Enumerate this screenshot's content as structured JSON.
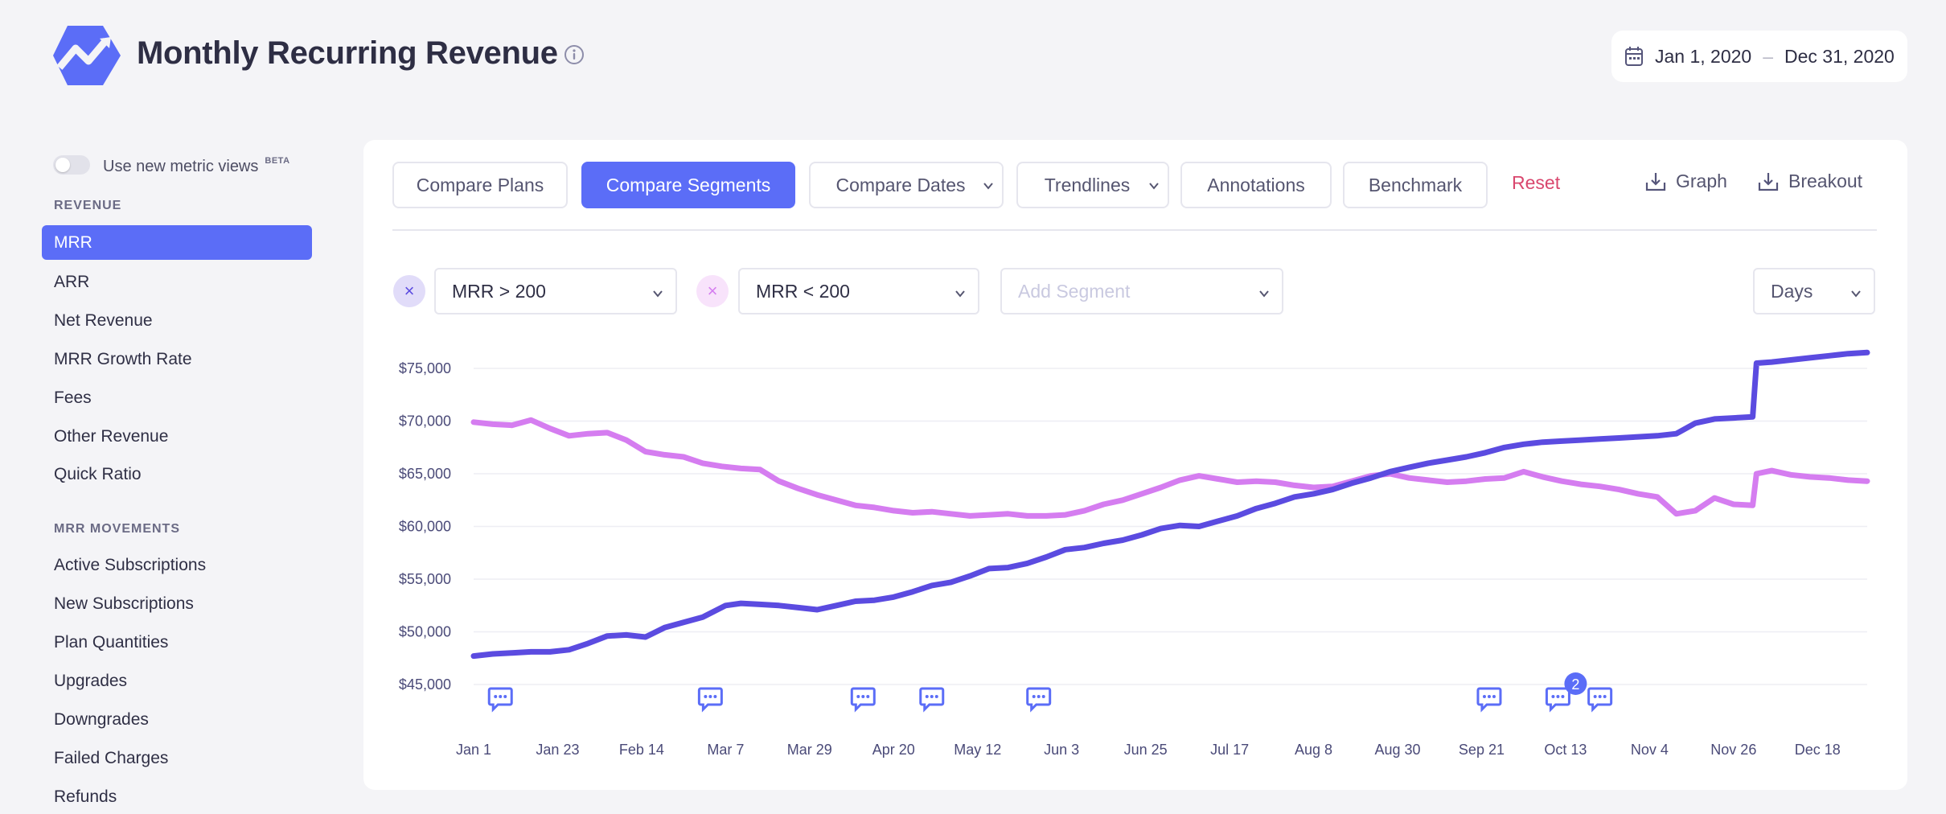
{
  "header": {
    "title": "Monthly Recurring Revenue",
    "date_start": "Jan 1, 2020",
    "date_sep": "–",
    "date_end": "Dec 31, 2020"
  },
  "sidebar": {
    "toggle_label": "Use new metric views",
    "toggle_badge": "BETA",
    "revenue_title": "REVENUE",
    "revenue_items": [
      {
        "label": "MRR",
        "active": true
      },
      {
        "label": "ARR"
      },
      {
        "label": "Net Revenue"
      },
      {
        "label": "MRR Growth Rate"
      },
      {
        "label": "Fees"
      },
      {
        "label": "Other Revenue"
      },
      {
        "label": "Quick Ratio"
      }
    ],
    "movements_title": "MRR MOVEMENTS",
    "movement_items": [
      {
        "label": "Active Subscriptions"
      },
      {
        "label": "New Subscriptions"
      },
      {
        "label": "Plan Quantities"
      },
      {
        "label": "Upgrades"
      },
      {
        "label": "Downgrades"
      },
      {
        "label": "Failed Charges"
      },
      {
        "label": "Refunds"
      }
    ]
  },
  "toolbar": {
    "compare_plans": "Compare Plans",
    "compare_segments": "Compare Segments",
    "compare_dates": "Compare Dates",
    "trendlines": "Trendlines",
    "annotations": "Annotations",
    "benchmark": "Benchmark",
    "reset": "Reset",
    "graph": "Graph",
    "breakout": "Breakout"
  },
  "segments": {
    "segment1": "MRR > 200",
    "segment2": "MRR < 200",
    "add_placeholder": "Add Segment",
    "interval": "Days"
  },
  "colors": {
    "accent": "#5b6df7",
    "series_high": "#5b4be0",
    "series_low": "#d57df0",
    "reset": "#d9476e"
  },
  "chart_data": {
    "type": "line",
    "x_ticks": [
      "Jan 1",
      "Jan 23",
      "Feb 14",
      "Mar 7",
      "Mar 29",
      "Apr 20",
      "May 12",
      "Jun 3",
      "Jun 25",
      "Jul 17",
      "Aug 8",
      "Aug 30",
      "Sep 21",
      "Oct 13",
      "Nov 4",
      "Nov 26",
      "Dec 18"
    ],
    "y_ticks": [
      "$45,000",
      "$50,000",
      "$55,000",
      "$60,000",
      "$65,000",
      "$70,000",
      "$75,000"
    ],
    "ylim": [
      45000,
      75000
    ],
    "grid": true,
    "series": [
      {
        "key": "high",
        "x": [
          0,
          5,
          10,
          15,
          20,
          25,
          30,
          35,
          40,
          45,
          50,
          55,
          60,
          66,
          70,
          75,
          80,
          85,
          90,
          95,
          100,
          105,
          110,
          115,
          120,
          125,
          130,
          135,
          140,
          145,
          150,
          155,
          160,
          165,
          170,
          175,
          180,
          185,
          190,
          195,
          200,
          205,
          210,
          215,
          220,
          225,
          230,
          235,
          240,
          245,
          250,
          255,
          260,
          265,
          270,
          275,
          280,
          285,
          290,
          295,
          300,
          305,
          310,
          315,
          320,
          325,
          330,
          335,
          336,
          340,
          345,
          350,
          355,
          360,
          365
        ],
        "values": [
          47700,
          47900,
          48000,
          48100,
          48100,
          48300,
          48900,
          49600,
          49700,
          49500,
          50400,
          50900,
          51400,
          52500,
          52700,
          52600,
          52500,
          52300,
          52100,
          52500,
          52900,
          53000,
          53300,
          53800,
          54400,
          54700,
          55300,
          56000,
          56100,
          56500,
          57100,
          57800,
          58000,
          58400,
          58700,
          59200,
          59800,
          60100,
          60000,
          60500,
          61000,
          61700,
          62200,
          62800,
          63100,
          63500,
          64100,
          64600,
          65200,
          65600,
          66000,
          66300,
          66600,
          67000,
          67500,
          67800,
          68000,
          68100,
          68200,
          68300,
          68400,
          68500,
          68600,
          68800,
          69800,
          70200,
          70300,
          70400,
          75500,
          75600,
          75800,
          76000,
          76200,
          76400,
          76500
        ]
      },
      {
        "key": "low",
        "x": [
          0,
          5,
          10,
          15,
          20,
          25,
          30,
          35,
          40,
          45,
          50,
          55,
          60,
          65,
          70,
          75,
          80,
          85,
          90,
          95,
          100,
          105,
          110,
          115,
          120,
          125,
          130,
          135,
          140,
          145,
          150,
          155,
          160,
          165,
          170,
          175,
          180,
          185,
          190,
          195,
          200,
          205,
          210,
          215,
          220,
          225,
          230,
          235,
          240,
          245,
          250,
          255,
          260,
          265,
          270,
          275,
          280,
          285,
          290,
          295,
          300,
          305,
          310,
          315,
          320,
          325,
          330,
          335,
          336,
          340,
          345,
          350,
          355,
          360,
          365
        ],
        "values": [
          69900,
          69700,
          69600,
          70100,
          69300,
          68600,
          68800,
          68900,
          68200,
          67100,
          66800,
          66600,
          66000,
          65700,
          65500,
          65400,
          64300,
          63600,
          63000,
          62500,
          62000,
          61800,
          61500,
          61300,
          61400,
          61200,
          61000,
          61100,
          61200,
          61000,
          61000,
          61100,
          61500,
          62100,
          62500,
          63100,
          63700,
          64400,
          64800,
          64500,
          64200,
          64300,
          64200,
          63900,
          63700,
          63800,
          64300,
          64800,
          65000,
          64600,
          64400,
          64200,
          64300,
          64500,
          64600,
          65200,
          64700,
          64300,
          64000,
          63800,
          63500,
          63100,
          62800,
          61200,
          61500,
          62700,
          62100,
          62000,
          65000,
          65300,
          64900,
          64700,
          64600,
          64400,
          64300
        ]
      }
    ],
    "annotations_at_x": [
      7,
      62,
      102,
      120,
      148,
      266,
      284,
      295
    ],
    "annotation_badge": {
      "x": 284,
      "count": "2"
    }
  }
}
